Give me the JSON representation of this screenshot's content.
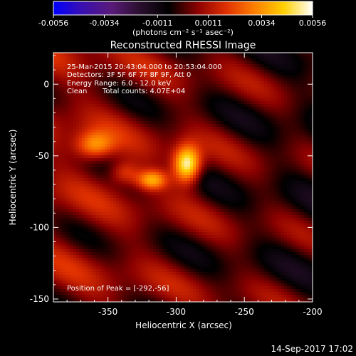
{
  "chart_data": {
    "type": "heatmap",
    "title": "Reconstructed RHESSI Image",
    "xlabel": "Heliocentric X (arcsec)",
    "ylabel": "Heliocentric Y (arcsec)",
    "xlim": [
      -390,
      -200
    ],
    "ylim": [
      -152,
      22
    ],
    "x_ticks": [
      -350,
      -300,
      -250,
      -200
    ],
    "y_ticks": [
      0,
      -50,
      -100,
      -150
    ],
    "x_tick_labels": [
      "-350",
      "-300",
      "-250",
      "-200"
    ],
    "y_tick_labels": [
      "0",
      "-50",
      "-100",
      "-150"
    ],
    "colorbar": {
      "range": [
        -0.0056,
        0.0056
      ],
      "tick_labels": [
        "-0.0056",
        "-0.0034",
        "-0.0011",
        "0.0011",
        "0.0034",
        "0.0056"
      ],
      "ticks": [
        -0.0056,
        -0.0034,
        -0.0011,
        0.0011,
        0.0034,
        0.0056
      ],
      "units_label": "(photons cm⁻² s⁻¹ asec⁻²)",
      "colormap": [
        "#0000ff",
        "#3a0fb0",
        "#5a1a7a",
        "#2a0f2e",
        "#000000",
        "#8a0000",
        "#e03000",
        "#ff8000",
        "#ffd000",
        "#ffffff"
      ]
    },
    "annotations": {
      "time": "25-Mar-2015 20:43:04.000 to 20:53:04.000",
      "detectors": "Detectors: 3F 5F 6F 7F 8F 9F, Att 0",
      "energy": "Energy Range: 6.0 - 12.0 keV",
      "method": "Clean",
      "counts": "Total counts: 4.07E+04",
      "peak": "Position of Peak = [-292,-56]"
    },
    "sources": [
      {
        "x": -292,
        "y": -56,
        "amp": 0.0056,
        "sx": 7,
        "sy": 9
      },
      {
        "x": -318,
        "y": -67,
        "amp": 0.0036,
        "sx": 8,
        "sy": 5
      },
      {
        "x": -360,
        "y": -43,
        "amp": 0.0032,
        "sx": 10,
        "sy": 7
      },
      {
        "x": -338,
        "y": -62,
        "amp": 0.0022,
        "sx": 8,
        "sy": 6
      }
    ],
    "peak": {
      "x": -292,
      "y": -56
    }
  },
  "footer": {
    "timestamp": "14-Sep-2017 17:02"
  }
}
